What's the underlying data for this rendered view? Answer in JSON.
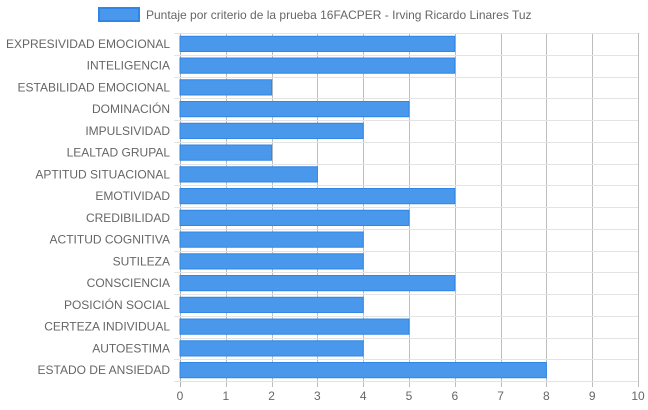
{
  "chart_data": {
    "type": "bar",
    "orientation": "horizontal",
    "categories": [
      "EXPRESIVIDAD EMOCIONAL",
      "INTELIGENCIA",
      "ESTABILIDAD EMOCIONAL",
      "DOMINACIÓN",
      "IMPULSIVIDAD",
      "LEALTAD GRUPAL",
      "APTITUD SITUACIONAL",
      "EMOTIVIDAD",
      "CREDIBILIDAD",
      "ACTITUD COGNITIVA",
      "SUTILEZA",
      "CONSCIENCIA",
      "POSICIÓN SOCIAL",
      "CERTEZA INDIVIDUAL",
      "AUTOESTIMA",
      "ESTADO DE ANSIEDAD"
    ],
    "series": [
      {
        "name": "Puntaje por criterio de la prueba 16FACPER - Irving Ricardo Linares Tuz",
        "values": [
          6,
          6,
          2,
          5,
          4,
          2,
          3,
          6,
          5,
          4,
          4,
          6,
          4,
          5,
          4,
          8
        ],
        "color": "#4a98eb",
        "border_color": "#2f86e6"
      }
    ],
    "xlim": [
      0,
      10
    ],
    "x_ticks": [
      "0",
      "1",
      "2",
      "3",
      "4",
      "5",
      "6",
      "7",
      "8",
      "9",
      "10"
    ],
    "grid": true,
    "legend_position": "top"
  }
}
